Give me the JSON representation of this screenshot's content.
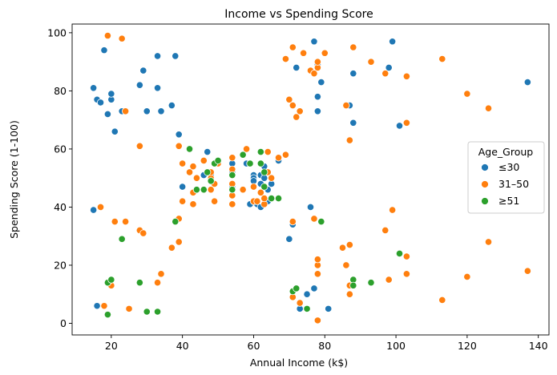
{
  "chart_data": {
    "type": "scatter",
    "title": "Income vs Spending Score",
    "xlabel": "Annual Income (k$)",
    "ylabel": "Spending Score (1-100)",
    "xlim": [
      9,
      143
    ],
    "ylim": [
      -4,
      103
    ],
    "xticks": [
      20,
      40,
      60,
      80,
      100,
      120,
      140
    ],
    "yticks": [
      0,
      20,
      40,
      60,
      80,
      100
    ],
    "grid": false,
    "legend": {
      "title": "Age_Group",
      "placement": "center-right"
    },
    "series": [
      {
        "name": "≤30",
        "color": "#1f77b4",
        "points": [
          [
            15,
            39
          ],
          [
            15,
            81
          ],
          [
            16,
            6
          ],
          [
            16,
            77
          ],
          [
            17,
            76
          ],
          [
            18,
            94
          ],
          [
            19,
            72
          ],
          [
            20,
            77
          ],
          [
            20,
            79
          ],
          [
            21,
            66
          ],
          [
            23,
            73
          ],
          [
            28,
            82
          ],
          [
            29,
            87
          ],
          [
            30,
            73
          ],
          [
            33,
            92
          ],
          [
            33,
            81
          ],
          [
            34,
            73
          ],
          [
            37,
            75
          ],
          [
            38,
            92
          ],
          [
            39,
            65
          ],
          [
            40,
            47
          ],
          [
            46,
            51
          ],
          [
            47,
            59
          ],
          [
            48,
            51
          ],
          [
            50,
            56
          ],
          [
            54,
            57
          ],
          [
            54,
            55
          ],
          [
            54,
            52
          ],
          [
            54,
            47
          ],
          [
            57,
            58
          ],
          [
            58,
            55
          ],
          [
            59,
            41
          ],
          [
            60,
            51
          ],
          [
            60,
            50
          ],
          [
            60,
            49
          ],
          [
            61,
            41
          ],
          [
            62,
            48
          ],
          [
            62,
            40
          ],
          [
            62,
            51
          ],
          [
            63,
            54
          ],
          [
            63,
            50
          ],
          [
            64,
            46
          ],
          [
            64,
            42
          ],
          [
            65,
            48
          ],
          [
            65,
            50
          ],
          [
            67,
            56
          ],
          [
            70,
            29
          ],
          [
            71,
            34
          ],
          [
            72,
            88
          ],
          [
            73,
            5
          ],
          [
            75,
            10
          ],
          [
            76,
            40
          ],
          [
            77,
            12
          ],
          [
            77,
            97
          ],
          [
            78,
            89
          ],
          [
            78,
            78
          ],
          [
            78,
            73
          ],
          [
            79,
            83
          ],
          [
            81,
            5
          ],
          [
            87,
            75
          ],
          [
            88,
            86
          ],
          [
            88,
            69
          ],
          [
            98,
            88
          ],
          [
            99,
            97
          ],
          [
            101,
            68
          ],
          [
            137,
            83
          ]
        ]
      },
      {
        "name": "31–50",
        "color": "#ff7f0e",
        "points": [
          [
            17,
            40
          ],
          [
            18,
            6
          ],
          [
            19,
            99
          ],
          [
            20,
            13
          ],
          [
            21,
            35
          ],
          [
            23,
            98
          ],
          [
            24,
            35
          ],
          [
            24,
            73
          ],
          [
            25,
            5
          ],
          [
            28,
            32
          ],
          [
            28,
            61
          ],
          [
            29,
            31
          ],
          [
            33,
            14
          ],
          [
            34,
            17
          ],
          [
            37,
            26
          ],
          [
            39,
            28
          ],
          [
            39,
            36
          ],
          [
            39,
            61
          ],
          [
            40,
            55
          ],
          [
            40,
            42
          ],
          [
            42,
            52
          ],
          [
            42,
            60
          ],
          [
            43,
            54
          ],
          [
            43,
            45
          ],
          [
            43,
            41
          ],
          [
            44,
            50
          ],
          [
            46,
            46
          ],
          [
            46,
            56
          ],
          [
            48,
            50
          ],
          [
            48,
            52
          ],
          [
            48,
            46
          ],
          [
            49,
            42
          ],
          [
            49,
            48
          ],
          [
            50,
            55
          ],
          [
            54,
            51
          ],
          [
            54,
            41
          ],
          [
            54,
            44
          ],
          [
            54,
            46
          ],
          [
            54,
            48
          ],
          [
            54,
            53
          ],
          [
            54,
            57
          ],
          [
            57,
            46
          ],
          [
            58,
            60
          ],
          [
            59,
            55
          ],
          [
            60,
            42
          ],
          [
            60,
            47
          ],
          [
            61,
            42
          ],
          [
            62,
            45
          ],
          [
            63,
            41
          ],
          [
            63,
            43
          ],
          [
            64,
            52
          ],
          [
            64,
            59
          ],
          [
            65,
            50
          ],
          [
            67,
            57
          ],
          [
            69,
            58
          ],
          [
            69,
            91
          ],
          [
            70,
            77
          ],
          [
            71,
            35
          ],
          [
            71,
            95
          ],
          [
            71,
            75
          ],
          [
            71,
            9
          ],
          [
            72,
            71
          ],
          [
            73,
            73
          ],
          [
            73,
            7
          ],
          [
            74,
            93
          ],
          [
            75,
            5
          ],
          [
            76,
            87
          ],
          [
            77,
            36
          ],
          [
            77,
            86
          ],
          [
            78,
            88
          ],
          [
            78,
            90
          ],
          [
            78,
            1
          ],
          [
            78,
            17
          ],
          [
            78,
            20
          ],
          [
            78,
            22
          ],
          [
            80,
            93
          ],
          [
            85,
            26
          ],
          [
            86,
            20
          ],
          [
            86,
            75
          ],
          [
            87,
            63
          ],
          [
            87,
            27
          ],
          [
            87,
            13
          ],
          [
            87,
            10
          ],
          [
            88,
            95
          ],
          [
            93,
            90
          ],
          [
            97,
            32
          ],
          [
            97,
            86
          ],
          [
            98,
            15
          ],
          [
            99,
            39
          ],
          [
            103,
            85
          ],
          [
            103,
            69
          ],
          [
            103,
            23
          ],
          [
            103,
            17
          ],
          [
            113,
            8
          ],
          [
            113,
            91
          ],
          [
            120,
            79
          ],
          [
            120,
            16
          ],
          [
            126,
            74
          ],
          [
            126,
            28
          ],
          [
            137,
            18
          ]
        ]
      },
      {
        "name": "≥51",
        "color": "#2ca02c",
        "points": [
          [
            19,
            14
          ],
          [
            19,
            3
          ],
          [
            20,
            15
          ],
          [
            23,
            29
          ],
          [
            28,
            14
          ],
          [
            30,
            4
          ],
          [
            33,
            4
          ],
          [
            38,
            35
          ],
          [
            42,
            60
          ],
          [
            44,
            46
          ],
          [
            46,
            46
          ],
          [
            47,
            52
          ],
          [
            48,
            49
          ],
          [
            49,
            55
          ],
          [
            50,
            56
          ],
          [
            54,
            46
          ],
          [
            54,
            51
          ],
          [
            57,
            58
          ],
          [
            59,
            55
          ],
          [
            62,
            59
          ],
          [
            62,
            55
          ],
          [
            63,
            52
          ],
          [
            63,
            47
          ],
          [
            65,
            43
          ],
          [
            67,
            43
          ],
          [
            71,
            11
          ],
          [
            72,
            12
          ],
          [
            75,
            5
          ],
          [
            79,
            35
          ],
          [
            88,
            15
          ],
          [
            88,
            13
          ],
          [
            93,
            14
          ],
          [
            101,
            24
          ]
        ]
      }
    ]
  }
}
